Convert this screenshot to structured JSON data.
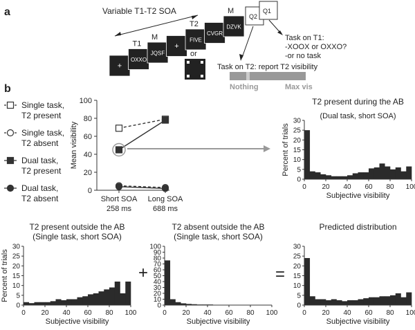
{
  "panel_a": {
    "letter": "a",
    "soa_label": "Variable T1-T2 SOA",
    "frames": [
      {
        "label": "",
        "text": "+"
      },
      {
        "label": "T1",
        "text": "OXXO"
      },
      {
        "label": "M",
        "text": "JQSF"
      },
      {
        "label": "",
        "text": "+"
      },
      {
        "label": "T2",
        "text": "FIVE"
      },
      {
        "label": "",
        "text": "CVGR"
      },
      {
        "label": "M",
        "text": "DZVK"
      }
    ],
    "q2": "Q2",
    "q1": "Q1",
    "or_label": "or",
    "t1_task": [
      "Task on T1:",
      "-XOOX or OXXO?",
      "-or no task"
    ],
    "t2_task": "Task on T2: report T2 visibility",
    "scale_left": "Nothing",
    "scale_right": "Max vis"
  },
  "panel_b": {
    "letter": "b",
    "legend": [
      {
        "line1": "Single task,",
        "line2": "T2 present",
        "marker": "open-square",
        "style": "dashed"
      },
      {
        "line1": "Single task,",
        "line2": "T2 absent",
        "marker": "open-circle",
        "style": "dashed"
      },
      {
        "line1": "Dual task,",
        "line2": "T2 present",
        "marker": "filled-square",
        "style": "solid"
      },
      {
        "line1": "Dual task,",
        "line2": "T2 absent",
        "marker": "filled-circle",
        "style": "solid"
      }
    ],
    "plus_sign": "+",
    "equals_sign": "="
  },
  "chart_data": [
    {
      "id": "mean-visibility",
      "type": "line",
      "ylabel": "Mean visibility",
      "ylim": [
        0,
        100
      ],
      "yticks": [
        0,
        20,
        40,
        60,
        80,
        100
      ],
      "categories": [
        {
          "line1": "Short SOA",
          "line2": "258 ms"
        },
        {
          "line1": "Long SOA",
          "line2": "688 ms"
        }
      ],
      "series": [
        {
          "name": "Single task, T2 present",
          "marker": "open-square",
          "style": "dashed",
          "values": [
            69,
            79
          ]
        },
        {
          "name": "Dual task, T2 present",
          "marker": "filled-square",
          "style": "solid",
          "values": [
            45,
            78
          ]
        },
        {
          "name": "Single task, T2 absent",
          "marker": "open-circle",
          "style": "dashed",
          "values": [
            5,
            3
          ]
        },
        {
          "name": "Dual task, T2 absent",
          "marker": "filled-circle",
          "style": "solid",
          "values": [
            4,
            2
          ]
        }
      ]
    },
    {
      "id": "hist-dual",
      "type": "bar",
      "title": "T2 present during the AB",
      "subtitle": "(Dual task, short SOA)",
      "xlabel": "Subjective visibility",
      "ylabel": "Percent of trials",
      "xticks": [
        0,
        20,
        40,
        60,
        80,
        100
      ],
      "yticks": [
        0,
        5,
        10,
        15,
        20,
        25,
        30
      ],
      "ylim": [
        0,
        30
      ],
      "bin_width": 5,
      "values": [
        25,
        4,
        3.5,
        2.5,
        2,
        1.5,
        1.5,
        1.5,
        2,
        3,
        3.5,
        3.5,
        5.5,
        6,
        8,
        6.5,
        5,
        6,
        4,
        6.5
      ]
    },
    {
      "id": "hist-present",
      "type": "bar",
      "title": "T2 present outside the AB",
      "subtitle": "(Single task, short SOA)",
      "xlabel": "Subjective visibility",
      "ylabel": "Percent of trials",
      "xticks": [
        0,
        20,
        40,
        60,
        80,
        100
      ],
      "yticks": [
        0,
        5,
        10,
        15,
        20,
        25,
        30
      ],
      "ylim": [
        0,
        30
      ],
      "bin_width": 5,
      "values": [
        1.5,
        1,
        1.5,
        1.5,
        1.5,
        2,
        3,
        2.5,
        3,
        3,
        4,
        4.5,
        5.5,
        6,
        7,
        8,
        9,
        12,
        6,
        12
      ]
    },
    {
      "id": "hist-absent",
      "type": "bar",
      "title": "T2 absent outside the AB",
      "subtitle": "(Single task, short SOA)",
      "xlabel": "Subjective visibility",
      "ylabel": "",
      "xticks": [
        0,
        20,
        40,
        60,
        80,
        100
      ],
      "yticks": [
        0,
        10,
        20,
        30,
        40,
        50,
        60,
        70,
        80,
        90,
        100
      ],
      "ylim": [
        0,
        100
      ],
      "bin_width": 5,
      "values": [
        76,
        10,
        5,
        3,
        2,
        1.5,
        1,
        1,
        1,
        0.5,
        0.5,
        0.5,
        0.5,
        0.5,
        0.5,
        0.3,
        0.3,
        0.3,
        0.3,
        0.3
      ]
    },
    {
      "id": "hist-predicted",
      "type": "bar",
      "title": "Predicted distribution",
      "xlabel": "Subjective visibility",
      "ylabel": "",
      "xticks": [
        0,
        20,
        40,
        60,
        80,
        100
      ],
      "yticks": [
        0,
        5,
        10,
        15,
        20,
        25,
        30
      ],
      "ylim": [
        0,
        30
      ],
      "bin_width": 5,
      "values": [
        24,
        4.5,
        3,
        3,
        2.5,
        3,
        2.5,
        2,
        2.5,
        2.5,
        3,
        3.5,
        4,
        4,
        4.5,
        4.5,
        5,
        6,
        4,
        6.5
      ]
    }
  ]
}
